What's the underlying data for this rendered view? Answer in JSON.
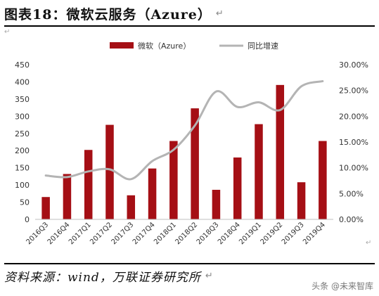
{
  "title": "图表18：微软云服务（Azure）",
  "source": "资料来源：wind，万联证券研究所",
  "watermark": "头条 @未来智库",
  "colors": {
    "bar": "#A50F15",
    "line": "#B4B4B4",
    "axis": "#BFBFBF"
  },
  "chart_data": {
    "type": "bar",
    "categories": [
      "2016Q3",
      "2016Q4",
      "2017Q1",
      "2017Q2",
      "2017Q3",
      "2017Q4",
      "2018Q1",
      "2018Q2",
      "2018Q3",
      "2018Q4",
      "2019Q1",
      "2019Q2",
      "2019Q3",
      "2019Q4"
    ],
    "series": [
      {
        "name": "微软（Azure）",
        "type": "bar",
        "axis": "left",
        "values": [
          65,
          132,
          202,
          275,
          70,
          148,
          228,
          323,
          86,
          180,
          277,
          391,
          108,
          228
        ]
      },
      {
        "name": "同比增速",
        "type": "line",
        "axis": "right",
        "values": [
          8.5,
          8.2,
          9.3,
          9.7,
          7.8,
          11.3,
          13.5,
          18.2,
          24.8,
          21.8,
          22.7,
          21.2,
          25.8,
          26.8
        ]
      }
    ],
    "ylim": [
      0,
      450
    ],
    "yticks": [
      "0",
      "50",
      "100",
      "150",
      "200",
      "250",
      "300",
      "350",
      "400",
      "450"
    ],
    "y2lim": [
      0,
      30
    ],
    "y2ticks": [
      "0.00%",
      "5.00%",
      "10.00%",
      "15.00%",
      "20.00%",
      "25.00%",
      "30.00%"
    ],
    "legend_position": "top"
  }
}
